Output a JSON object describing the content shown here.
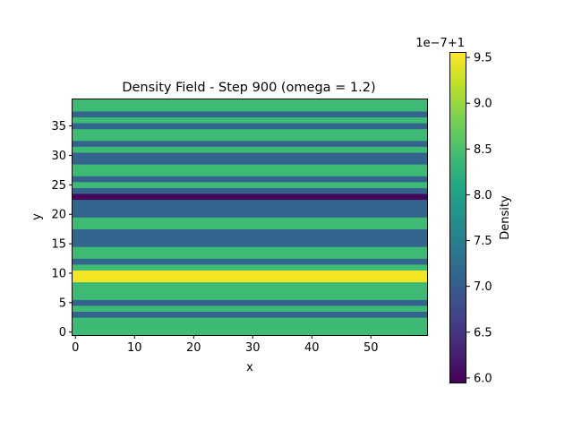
{
  "chart_data": {
    "type": "heatmap",
    "title": "Density Field - Step 900 (omega = 1.2)",
    "xlabel": "x",
    "ylabel": "y",
    "xlim": [
      -0.5,
      59.5
    ],
    "ylim": [
      -0.5,
      39.5
    ],
    "x_ticks": [
      "0",
      "10",
      "20",
      "30",
      "40",
      "50"
    ],
    "x_tick_values": [
      0,
      10,
      20,
      30,
      40,
      50
    ],
    "y_ticks": [
      "0",
      "5",
      "10",
      "15",
      "20",
      "25",
      "30",
      "35"
    ],
    "y_tick_values": [
      0,
      5,
      10,
      15,
      20,
      25,
      30,
      35
    ],
    "colormap": "viridis",
    "colorbar": {
      "label": "Density",
      "offset_label": "1e−7+1",
      "range": [
        5.95,
        9.55
      ],
      "ticks": [
        "6.0",
        "6.5",
        "7.0",
        "7.5",
        "8.0",
        "8.5",
        "9.0",
        "9.5"
      ],
      "tick_values": [
        6.0,
        6.5,
        7.0,
        7.5,
        8.0,
        8.5,
        9.0,
        9.5
      ]
    },
    "rows_y": [
      0,
      1,
      2,
      3,
      4,
      5,
      6,
      7,
      8,
      9,
      10,
      11,
      12,
      13,
      14,
      15,
      16,
      17,
      18,
      19,
      20,
      21,
      22,
      23,
      24,
      25,
      26,
      27,
      28,
      29,
      30,
      31,
      32,
      33,
      34,
      35,
      36,
      37,
      38,
      39
    ],
    "row_values": [
      8.4,
      8.4,
      8.4,
      7.1,
      8.4,
      7.1,
      8.4,
      8.4,
      8.4,
      9.5,
      9.5,
      8.4,
      7.1,
      8.4,
      8.4,
      7.1,
      7.1,
      7.1,
      8.4,
      8.4,
      7.1,
      7.1,
      7.1,
      6.0,
      7.1,
      8.4,
      7.1,
      8.4,
      8.4,
      7.1,
      7.1,
      8.4,
      7.1,
      8.4,
      8.4,
      7.1,
      8.4,
      7.1,
      8.4,
      8.4
    ]
  }
}
